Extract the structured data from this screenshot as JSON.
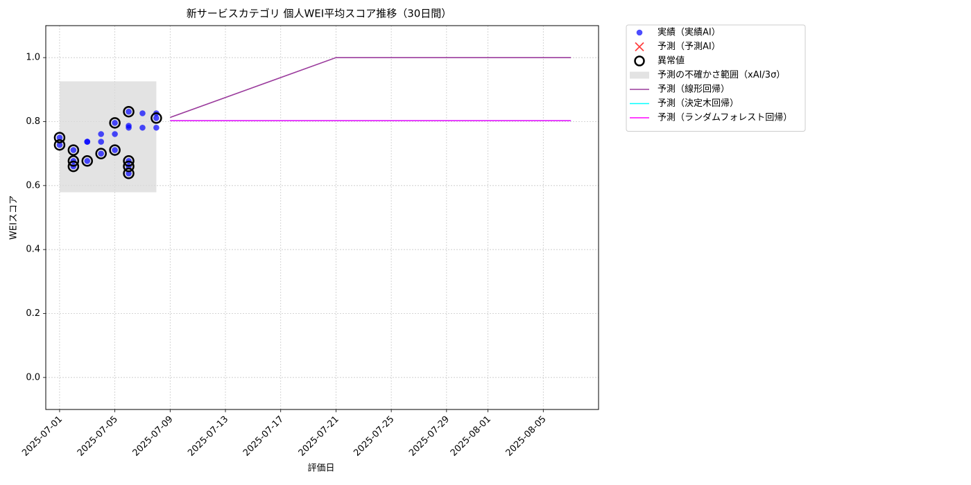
{
  "chart_data": {
    "type": "combo",
    "title": "新サービスカテゴリ 個人WEI平均スコア推移（30日間）",
    "x_label": "評価日",
    "y_label": "WEIスコア",
    "xlim": [
      "2025-06-30",
      "2025-08-09"
    ],
    "xticks": [
      "2025-07-01",
      "2025-07-05",
      "2025-07-09",
      "2025-07-13",
      "2025-07-17",
      "2025-07-21",
      "2025-07-25",
      "2025-07-29",
      "2025-08-01",
      "2025-08-05"
    ],
    "ylim": [
      -0.1,
      1.1
    ],
    "yticks": [
      {
        "value": 0,
        "label": "0.0"
      },
      0.2,
      0.4,
      0.6,
      0.8,
      {
        "value": 1,
        "label": "1.0"
      }
    ],
    "grid": true,
    "legend": "outside-upper-right",
    "series": [
      {
        "name": "予測の不確かさ範囲（xAI/3σ）",
        "type": "band",
        "color": "#d9d9d9",
        "x": [
          "2025-07-01",
          "2025-07-08"
        ],
        "lower": [
          0.579,
          0.579
        ],
        "upper": [
          0.926,
          0.926
        ]
      },
      {
        "name": "実績（実績AI）",
        "type": "scatter",
        "color": "#0000ff",
        "x": [
          "2025-07-01",
          "2025-07-01",
          "2025-07-02",
          "2025-07-02",
          "2025-07-02",
          "2025-07-03",
          "2025-07-03",
          "2025-07-03",
          "2025-07-04",
          "2025-07-04",
          "2025-07-04",
          "2025-07-05",
          "2025-07-05",
          "2025-07-05",
          "2025-07-06",
          "2025-07-06",
          "2025-07-06",
          "2025-07-06",
          "2025-07-06",
          "2025-07-06",
          "2025-07-07",
          "2025-07-07",
          "2025-07-08",
          "2025-07-08",
          "2025-07-08"
        ],
        "values": [
          0.75,
          0.727,
          0.66,
          0.711,
          0.677,
          0.737,
          0.737,
          0.677,
          0.7,
          0.761,
          0.737,
          0.711,
          0.796,
          0.761,
          0.638,
          0.677,
          0.66,
          0.831,
          0.787,
          0.781,
          0.781,
          0.826,
          0.811,
          0.826,
          0.781
        ]
      },
      {
        "name": "予測（予測AI）",
        "type": "cross",
        "color": "#ff0000",
        "x": [],
        "values": []
      },
      {
        "name": "異常値",
        "type": "ring",
        "color": "#000000",
        "x": [
          "2025-07-01",
          "2025-07-01",
          "2025-07-02",
          "2025-07-02",
          "2025-07-02",
          "2025-07-03",
          "2025-07-04",
          "2025-07-05",
          "2025-07-05",
          "2025-07-06",
          "2025-07-06",
          "2025-07-06",
          "2025-07-06",
          "2025-07-08"
        ],
        "values": [
          0.75,
          0.727,
          0.66,
          0.711,
          0.677,
          0.677,
          0.7,
          0.711,
          0.796,
          0.638,
          0.677,
          0.66,
          0.831,
          0.811
        ]
      },
      {
        "name": "予測（線形回帰）",
        "type": "line",
        "color": "#9a3a9c",
        "x": [
          "2025-07-09",
          "2025-07-21",
          "2025-08-07"
        ],
        "values": [
          0.813,
          1.0,
          1.0
        ]
      },
      {
        "name": "予測（決定木回帰）",
        "type": "line",
        "color": "#00ffff",
        "x": [
          "2025-07-09",
          "2025-08-07"
        ],
        "values": [
          0.803,
          0.803
        ]
      },
      {
        "name": "予測（ランダムフォレスト回帰）",
        "type": "line",
        "color": "#ff00ff",
        "x": [
          "2025-07-09",
          "2025-08-07"
        ],
        "values": [
          0.803,
          0.803
        ]
      }
    ],
    "legend_order": [
      1,
      2,
      3,
      0,
      4,
      5,
      6
    ]
  }
}
